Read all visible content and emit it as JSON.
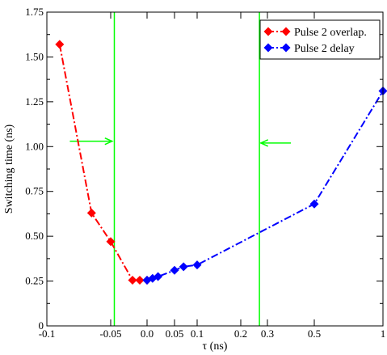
{
  "chart_data": {
    "type": "line",
    "xlabel": "τ (ns)",
    "ylabel": "Switching time (ns)",
    "x_ticks": [
      {
        "value": -0.1,
        "label": "-0.1"
      },
      {
        "value": -0.05,
        "label": "-0.05"
      },
      {
        "value": 0.0,
        "label": "0.0"
      },
      {
        "value": 0.05,
        "label": "0.05"
      },
      {
        "value": 0.1,
        "label": "0.1"
      },
      {
        "value": 0.2,
        "label": "0.2"
      },
      {
        "value": 0.3,
        "label": "0.3"
      },
      {
        "value": 0.5,
        "label": "0.5"
      },
      {
        "value": 1.0,
        "label": "1"
      }
    ],
    "y_ticks": [
      {
        "value": 0.0,
        "label": "0"
      },
      {
        "value": 0.25,
        "label": "0.25"
      },
      {
        "value": 0.5,
        "label": "0.50"
      },
      {
        "value": 0.75,
        "label": "0.75"
      },
      {
        "value": 1.0,
        "label": "1.00"
      },
      {
        "value": 1.25,
        "label": "1.25"
      },
      {
        "value": 1.5,
        "label": "1.50"
      },
      {
        "value": 1.75,
        "label": "1.75"
      }
    ],
    "ylim": [
      0,
      1.75
    ],
    "series": [
      {
        "name": "Pulse 2 overlap.",
        "color": "#ff0000",
        "marker": "diamond",
        "line_style": "dash-dot",
        "points": [
          {
            "x": -0.09,
            "y": 1.57
          },
          {
            "x": -0.065,
            "y": 0.63
          },
          {
            "x": -0.05,
            "y": 0.47
          },
          {
            "x": -0.02,
            "y": 0.255
          },
          {
            "x": -0.01,
            "y": 0.255
          },
          {
            "x": 0.0,
            "y": 0.255
          }
        ]
      },
      {
        "name": "Pulse 2 delay",
        "color": "#0000ff",
        "marker": "diamond",
        "line_style": "dash-dot",
        "points": [
          {
            "x": 0.0,
            "y": 0.255
          },
          {
            "x": 0.01,
            "y": 0.265
          },
          {
            "x": 0.02,
            "y": 0.275
          },
          {
            "x": 0.05,
            "y": 0.31
          },
          {
            "x": 0.07,
            "y": 0.33
          },
          {
            "x": 0.1,
            "y": 0.34
          },
          {
            "x": 0.5,
            "y": 0.68
          },
          {
            "x": 1.0,
            "y": 1.31
          }
        ]
      }
    ],
    "reference_lines": [
      {
        "x": -0.045,
        "color": "#00ff00"
      },
      {
        "x": 0.27,
        "color": "#00ff00"
      }
    ],
    "arrows": [
      {
        "x_from": -0.082,
        "x_to": -0.048,
        "y": 1.03,
        "color": "#00ff00"
      },
      {
        "x_from": 0.4,
        "x_to": 0.275,
        "y": 1.02,
        "color": "#00ff00"
      }
    ],
    "legend_placement": "top-right",
    "grid": false
  }
}
